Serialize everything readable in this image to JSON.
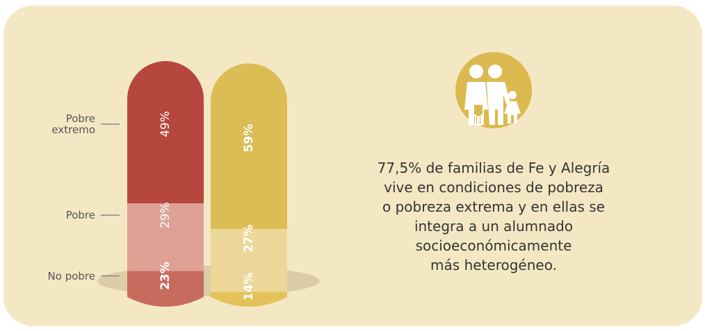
{
  "chart_data": {
    "type": "stacked-bar",
    "stacked": true,
    "categories": [
      null,
      null
    ],
    "series": [
      {
        "name": "No pobre",
        "colors": [
          "#c96a5f",
          "#e3c25a"
        ],
        "values": [
          23,
          14
        ],
        "value_labels": [
          "23%",
          "14%"
        ]
      },
      {
        "name": "Pobre",
        "colors": [
          "#dea196",
          "#ecd798"
        ],
        "values": [
          29,
          27
        ],
        "value_labels": [
          "29%",
          "27%"
        ]
      },
      {
        "name": "Pobre extremo",
        "colors": [
          "#b5473f",
          "#dcbd55"
        ],
        "values": [
          49,
          59
        ],
        "value_labels": [
          "49%",
          "59%"
        ]
      }
    ],
    "annotation": [
      "77,5% de familias de Fe y Alegría",
      "vive en condiciones de pobreza",
      "o pobreza extrema y en ellas se",
      "integra a un alumnado",
      "socioeconómicamente",
      "más heterogéneo."
    ]
  }
}
